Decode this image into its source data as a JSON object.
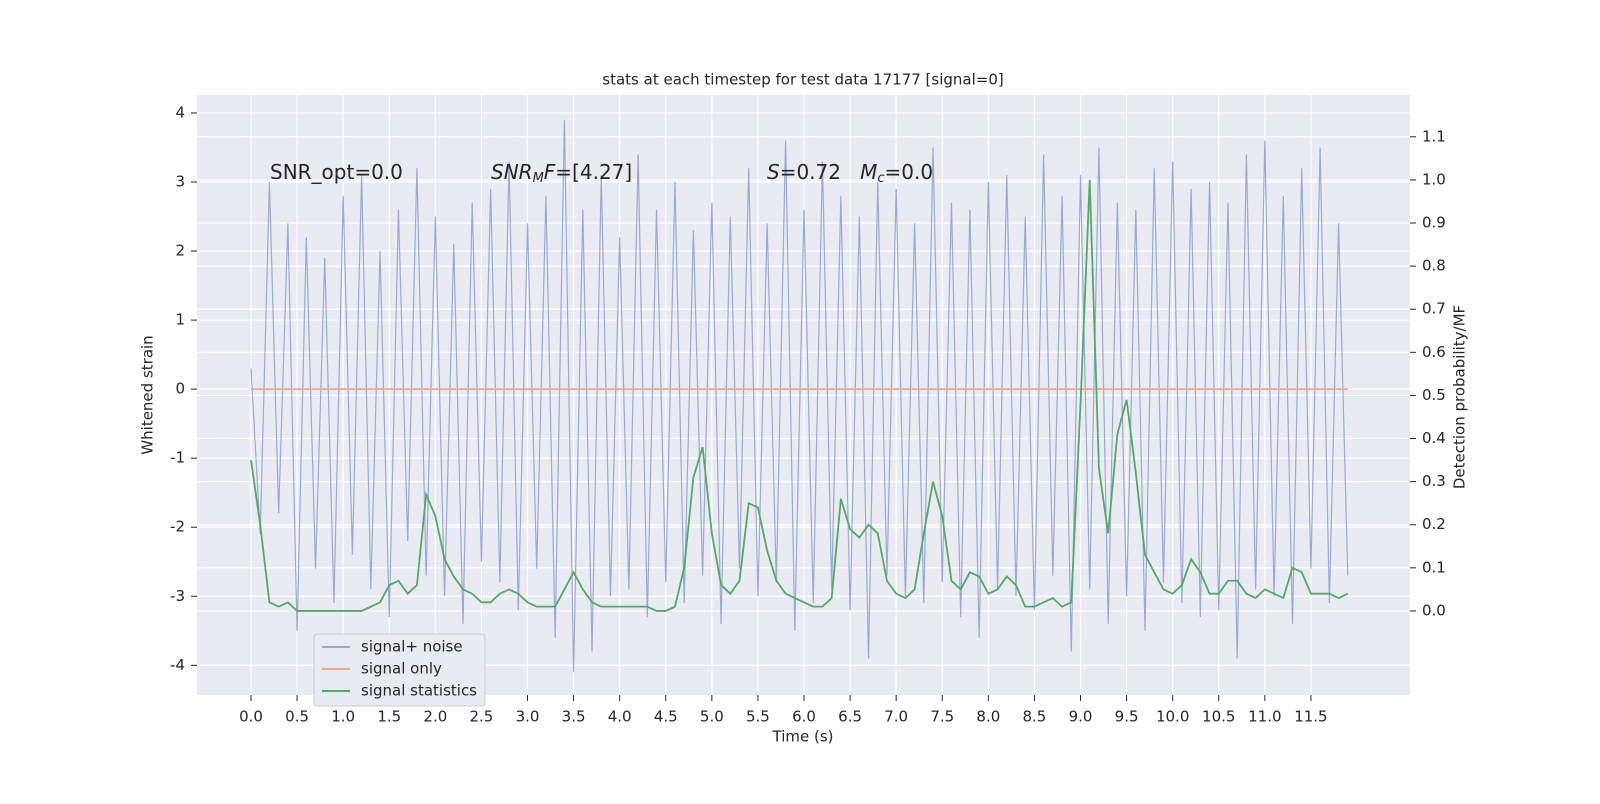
{
  "chart_data": {
    "type": "line",
    "title": "stats at each timestep for test data 17177 [signal=0]",
    "xlabel": "Time (s)",
    "ylabel": "Whitened strain",
    "y2label": "Detection probability/MF",
    "annotations": [
      [
        "SNR_opt=0.0"
      ],
      [
        "SNR",
        "M",
        "F",
        "=[4.27]"
      ],
      [
        "S",
        "=0.72   ",
        "M",
        "c",
        "=0.0"
      ]
    ],
    "x": [
      0.0,
      0.1,
      0.2,
      0.3,
      0.4,
      0.5,
      0.6,
      0.7,
      0.8,
      0.9,
      1.0,
      1.1,
      1.2,
      1.3,
      1.4,
      1.5,
      1.6,
      1.7,
      1.8,
      1.9,
      2.0,
      2.1,
      2.2,
      2.3,
      2.4,
      2.5,
      2.6,
      2.7,
      2.8,
      2.9,
      3.0,
      3.1,
      3.2,
      3.3,
      3.4,
      3.5,
      3.6,
      3.7,
      3.8,
      3.9,
      4.0,
      4.1,
      4.2,
      4.3,
      4.4,
      4.5,
      4.6,
      4.7,
      4.8,
      4.9,
      5.0,
      5.1,
      5.2,
      5.3,
      5.4,
      5.5,
      5.6,
      5.7,
      5.8,
      5.9,
      6.0,
      6.1,
      6.2,
      6.3,
      6.4,
      6.5,
      6.6,
      6.7,
      6.8,
      6.9,
      7.0,
      7.1,
      7.2,
      7.3,
      7.4,
      7.5,
      7.6,
      7.7,
      7.8,
      7.9,
      8.0,
      8.1,
      8.2,
      8.3,
      8.4,
      8.5,
      8.6,
      8.7,
      8.8,
      8.9,
      9.0,
      9.1,
      9.2,
      9.3,
      9.4,
      9.5,
      9.6,
      9.7,
      9.8,
      9.9,
      10.0,
      10.1,
      10.2,
      10.3,
      10.4,
      10.5,
      10.6,
      10.7,
      10.8,
      10.9,
      11.0,
      11.1,
      11.2,
      11.3,
      11.4,
      11.5,
      11.6,
      11.7,
      11.8,
      11.9
    ],
    "series": [
      {
        "name": "signal+ noise",
        "color": "#9aaad0",
        "values": [
          0.3,
          -2.1,
          3.0,
          -1.8,
          2.4,
          -3.5,
          2.2,
          -2.6,
          1.9,
          -3.1,
          2.8,
          -2.4,
          3.1,
          -2.9,
          2.0,
          -3.3,
          2.6,
          -2.2,
          3.2,
          -2.7,
          2.5,
          -3.0,
          2.1,
          -3.4,
          2.7,
          -2.5,
          2.9,
          -2.8,
          3.3,
          -3.2,
          2.4,
          -2.6,
          2.8,
          -3.6,
          3.9,
          -4.1,
          2.6,
          -3.8,
          3.1,
          -3.0,
          2.2,
          -2.9,
          3.4,
          -3.3,
          2.6,
          -2.8,
          3.0,
          -3.1,
          2.3,
          -2.7,
          2.7,
          -3.4,
          2.5,
          -2.6,
          3.2,
          -3.0,
          2.4,
          -2.8,
          3.6,
          -3.5,
          2.6,
          -3.1,
          3.3,
          -2.9,
          2.8,
          -3.2,
          2.5,
          -3.9,
          3.0,
          -2.7,
          2.9,
          -3.0,
          2.4,
          -3.1,
          3.5,
          -2.8,
          2.7,
          -3.3,
          2.6,
          -3.6,
          3.0,
          -2.9,
          3.1,
          -3.0,
          2.5,
          -3.2,
          3.4,
          -2.7,
          2.8,
          -3.8,
          3.1,
          -2.9,
          3.5,
          -3.4,
          2.7,
          -3.0,
          2.6,
          -3.5,
          3.2,
          -2.8,
          3.3,
          -3.1,
          2.9,
          -3.3,
          3.0,
          -3.2,
          2.7,
          -3.9,
          3.4,
          -2.9,
          3.6,
          -3.0,
          2.8,
          -3.4,
          3.2,
          -2.6,
          3.5,
          -3.1,
          2.4,
          -2.7
        ]
      },
      {
        "name": "signal only",
        "color": "#e8a98f",
        "values": [
          0,
          0,
          0,
          0,
          0,
          0,
          0,
          0,
          0,
          0,
          0,
          0,
          0,
          0,
          0,
          0,
          0,
          0,
          0,
          0,
          0,
          0,
          0,
          0,
          0,
          0,
          0,
          0,
          0,
          0,
          0,
          0,
          0,
          0,
          0,
          0,
          0,
          0,
          0,
          0,
          0,
          0,
          0,
          0,
          0,
          0,
          0,
          0,
          0,
          0,
          0,
          0,
          0,
          0,
          0,
          0,
          0,
          0,
          0,
          0,
          0,
          0,
          0,
          0,
          0,
          0,
          0,
          0,
          0,
          0,
          0,
          0,
          0,
          0,
          0,
          0,
          0,
          0,
          0,
          0,
          0,
          0,
          0,
          0,
          0,
          0,
          0,
          0,
          0,
          0,
          0,
          0,
          0,
          0,
          0,
          0,
          0,
          0,
          0,
          0,
          0,
          0,
          0,
          0,
          0,
          0,
          0,
          0,
          0,
          0,
          0,
          0,
          0,
          0,
          0,
          0,
          0,
          0,
          0,
          0
        ]
      },
      {
        "name": "signal statistics",
        "color": "#55a868",
        "axis": "y2",
        "values": [
          0.35,
          0.2,
          0.02,
          0.01,
          0.02,
          0.0,
          0.0,
          0.0,
          0.0,
          0.0,
          0.0,
          0.0,
          0.0,
          0.01,
          0.02,
          0.06,
          0.07,
          0.04,
          0.06,
          0.27,
          0.22,
          0.12,
          0.08,
          0.05,
          0.04,
          0.02,
          0.02,
          0.04,
          0.05,
          0.04,
          0.02,
          0.01,
          0.01,
          0.01,
          0.05,
          0.09,
          0.05,
          0.02,
          0.01,
          0.01,
          0.01,
          0.01,
          0.01,
          0.01,
          0.0,
          0.0,
          0.01,
          0.1,
          0.31,
          0.38,
          0.18,
          0.06,
          0.04,
          0.07,
          0.25,
          0.24,
          0.14,
          0.07,
          0.04,
          0.03,
          0.02,
          0.01,
          0.01,
          0.03,
          0.26,
          0.19,
          0.17,
          0.2,
          0.18,
          0.07,
          0.04,
          0.03,
          0.05,
          0.18,
          0.3,
          0.22,
          0.07,
          0.05,
          0.09,
          0.08,
          0.04,
          0.05,
          0.08,
          0.06,
          0.01,
          0.01,
          0.02,
          0.03,
          0.01,
          0.02,
          0.48,
          1.0,
          0.33,
          0.18,
          0.41,
          0.49,
          0.32,
          0.13,
          0.09,
          0.05,
          0.04,
          0.06,
          0.12,
          0.09,
          0.04,
          0.04,
          0.07,
          0.07,
          0.04,
          0.03,
          0.05,
          0.04,
          0.03,
          0.1,
          0.09,
          0.04,
          0.04,
          0.04,
          0.03,
          0.04
        ]
      }
    ],
    "xlim": [
      -0.586,
      12.575
    ],
    "ylim": [
      -4.43,
      4.26
    ],
    "y2lim": [
      -0.195,
      1.197
    ],
    "xticks": [
      {
        "value": 0,
        "label": "0.0"
      },
      0.5,
      {
        "value": 1,
        "label": "1.0"
      },
      1.5,
      {
        "value": 2,
        "label": "2.0"
      },
      2.5,
      {
        "value": 3,
        "label": "3.0"
      },
      3.5,
      {
        "value": 4,
        "label": "4.0"
      },
      4.5,
      {
        "value": 5,
        "label": "5.0"
      },
      5.5,
      {
        "value": 6,
        "label": "6.0"
      },
      6.5,
      {
        "value": 7,
        "label": "7.0"
      },
      7.5,
      {
        "value": 8,
        "label": "8.0"
      },
      8.5,
      {
        "value": 9,
        "label": "9.0"
      },
      9.5,
      {
        "value": 10,
        "label": "10.0"
      },
      10.5,
      {
        "value": 11,
        "label": "11.0"
      },
      11.5
    ],
    "yticks": [
      -4,
      -3,
      -2,
      -1,
      0,
      1,
      2,
      3,
      4
    ],
    "y2ticks": [
      {
        "value": 0,
        "label": "0.0"
      },
      0.1,
      0.2,
      0.3,
      0.4,
      0.5,
      0.6,
      0.7,
      0.8,
      0.9,
      {
        "value": 1,
        "label": "1.0"
      },
      1.1
    ],
    "grid": true,
    "legend": "lower left"
  }
}
